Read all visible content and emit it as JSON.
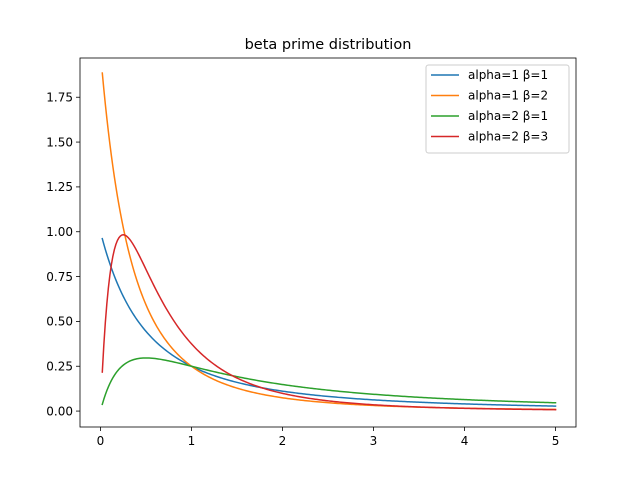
{
  "chart_data": {
    "type": "line",
    "title": "beta prime distribution",
    "xlabel": "",
    "ylabel": "",
    "xlim": [
      -0.225,
      5.225
    ],
    "ylim": [
      -0.0888,
      1.9688
    ],
    "xticks": [
      0,
      1,
      2,
      3,
      4,
      5
    ],
    "xtick_labels": [
      "0",
      "1",
      "2",
      "3",
      "4",
      "5"
    ],
    "yticks": [
      0,
      0.25,
      0.5,
      0.75,
      1.0,
      1.25,
      1.5,
      1.75
    ],
    "ytick_labels": [
      "0.00",
      "0.25",
      "0.50",
      "0.75",
      "1.00",
      "1.25",
      "1.50",
      "1.75"
    ],
    "grid": false,
    "legend_position": "top-right",
    "x_range": [
      0.02,
      5.0
    ],
    "series": [
      {
        "name": "alpha=1 β=1",
        "alpha": 1,
        "beta": 1,
        "color": "#1f77b4"
      },
      {
        "name": "alpha=1 β=2",
        "alpha": 1,
        "beta": 2,
        "color": "#ff7f0e"
      },
      {
        "name": "alpha=2 β=1",
        "alpha": 2,
        "beta": 1,
        "color": "#2ca02c"
      },
      {
        "name": "alpha=2 β=3",
        "alpha": 2,
        "beta": 3,
        "color": "#d62728"
      }
    ]
  }
}
